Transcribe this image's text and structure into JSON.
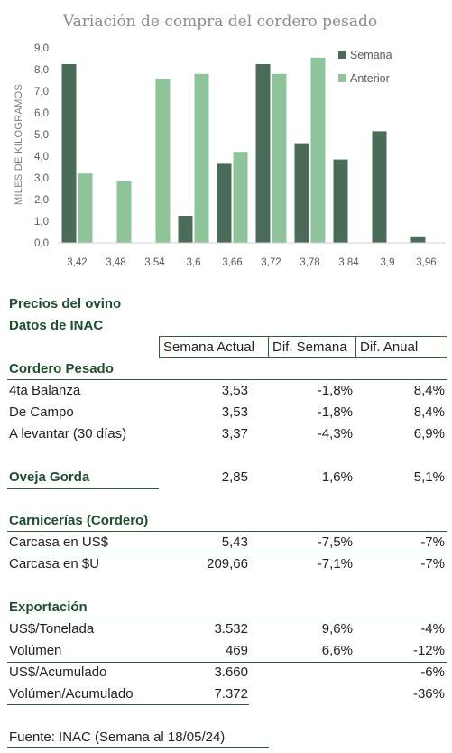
{
  "chart_data": {
    "type": "bar",
    "title": "Variación de compra del cordero pesado",
    "ylabel": "MILES DE KILOGRAMOS",
    "xlabel": "",
    "ylim": [
      0,
      9
    ],
    "yticks": [
      "0,0",
      "1,0",
      "2,0",
      "3,0",
      "4,0",
      "5,0",
      "6,0",
      "7,0",
      "8,0",
      "9,0"
    ],
    "categories": [
      "3,42",
      "3,48",
      "3,54",
      "3,6",
      "3,66",
      "3,72",
      "3,78",
      "3,84",
      "3,9",
      "3,96"
    ],
    "series": [
      {
        "name": "Semana",
        "color": "#4a6b58",
        "values": [
          8.25,
          0,
          0,
          1.25,
          3.65,
          8.25,
          4.6,
          3.85,
          5.15,
          0.3
        ]
      },
      {
        "name": "Anterior",
        "color": "#8fc49a",
        "values": [
          3.2,
          2.85,
          7.55,
          7.8,
          4.2,
          7.8,
          8.55,
          0,
          0,
          0
        ]
      }
    ],
    "legend_position": "top-right",
    "grid": false
  },
  "tables": {
    "title1": "Precios del ovino",
    "title2": "Datos de INAC",
    "headers": [
      "Semana Actual",
      "Dif. Semana",
      "Dif. Anual"
    ],
    "cordero_title": "Cordero Pesado",
    "cordero_rows": [
      [
        "4ta Balanza",
        "3,53",
        "-1,8%",
        "8,4%"
      ],
      [
        "De Campo",
        "3,53",
        "-1,8%",
        "8,4%"
      ],
      [
        "A levantar (30 días)",
        "3,37",
        "-4,3%",
        "6,9%"
      ]
    ],
    "oveja": [
      "Oveja Gorda",
      "2,85",
      "1,6%",
      "5,1%"
    ],
    "carn_title": "Carnicerías (Cordero)",
    "carn_rows": [
      [
        "Carcasa en US$",
        "5,43",
        "-7,5%",
        "-7%"
      ],
      [
        "Carcasa en $U",
        "209,66",
        "-7,1%",
        "-7%"
      ]
    ],
    "export_title": "Exportación",
    "export_rows": [
      [
        "US$/Tonelada",
        "3.532",
        "9,6%",
        "-4%"
      ],
      [
        "Volúmen",
        "469",
        "6,6%",
        "-12%"
      ],
      [
        "US$/Acumulado",
        "3.660",
        "",
        "-6%"
      ],
      [
        "Volúmen/Acumulado",
        "7.372",
        "",
        "-36%"
      ]
    ],
    "source": "Fuente: INAC (Semana al 18/05/24)"
  }
}
